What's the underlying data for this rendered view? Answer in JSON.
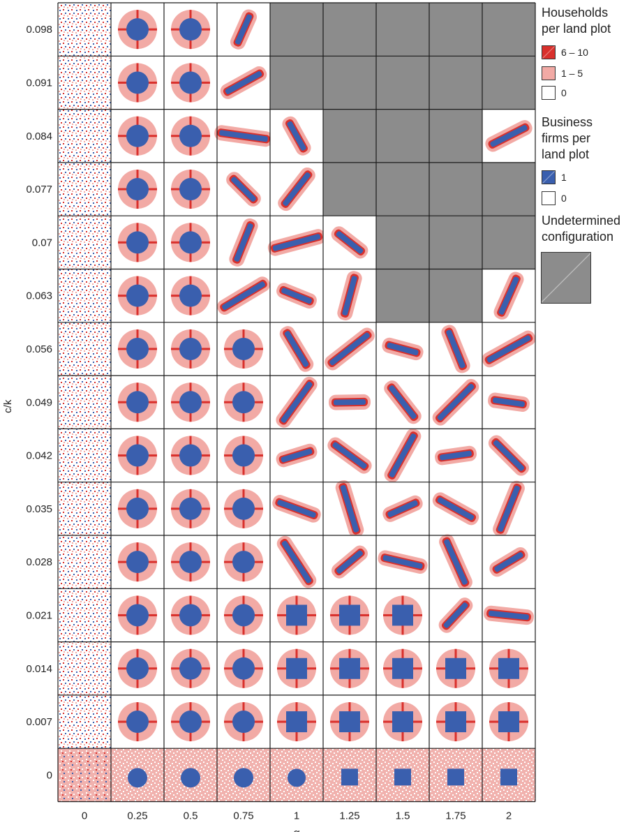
{
  "chart_data": {
    "type": "heatmap",
    "title": "",
    "xlabel": "α",
    "ylabel": "c/k",
    "x_ticks": [
      "0",
      "0.25",
      "0.5",
      "0.75",
      "1",
      "1.25",
      "1.5",
      "1.75",
      "2"
    ],
    "y_ticks": [
      "0.098",
      "0.091",
      "0.084",
      "0.077",
      "0.07",
      "0.063",
      "0.056",
      "0.049",
      "0.042",
      "0.035",
      "0.028",
      "0.021",
      "0.014",
      "0.007",
      "0"
    ],
    "undetermined_cells": [
      {
        "row": "0.098",
        "columns": [
          "1",
          "1.25",
          "1.5",
          "1.75",
          "2"
        ]
      },
      {
        "row": "0.091",
        "columns": [
          "1",
          "1.25",
          "1.5",
          "1.75",
          "2"
        ]
      },
      {
        "row": "0.084",
        "columns": [
          "1.25",
          "1.5",
          "1.75"
        ]
      },
      {
        "row": "0.077",
        "columns": [
          "1.25",
          "1.5",
          "1.75",
          "2"
        ]
      },
      {
        "row": "0.07",
        "columns": [
          "1.5",
          "1.75",
          "2"
        ]
      },
      {
        "row": "0.063",
        "columns": [
          "1.5",
          "1.75"
        ]
      }
    ],
    "cell_patterns": {
      "column_0": "scattered",
      "row_0": "square over dense household background",
      "others": "central business cluster with households around it"
    },
    "legend": {
      "households": {
        "title": "Households\nper land plot",
        "entries": [
          {
            "label": "6 – 10",
            "color": "#d9302c"
          },
          {
            "label": "1 – 5",
            "color": "#f2aaa5"
          },
          {
            "label": "0",
            "color": "#ffffff"
          }
        ]
      },
      "firms": {
        "title": "Business\nfirms per\nland plot",
        "entries": [
          {
            "label": "1",
            "color": "#3a5fae"
          },
          {
            "label": "0",
            "color": "#ffffff"
          }
        ]
      },
      "undetermined": {
        "title": "Undetermined\nconfiguration",
        "color": "#8c8c8c"
      },
      "placement": "right"
    },
    "grid": true
  }
}
